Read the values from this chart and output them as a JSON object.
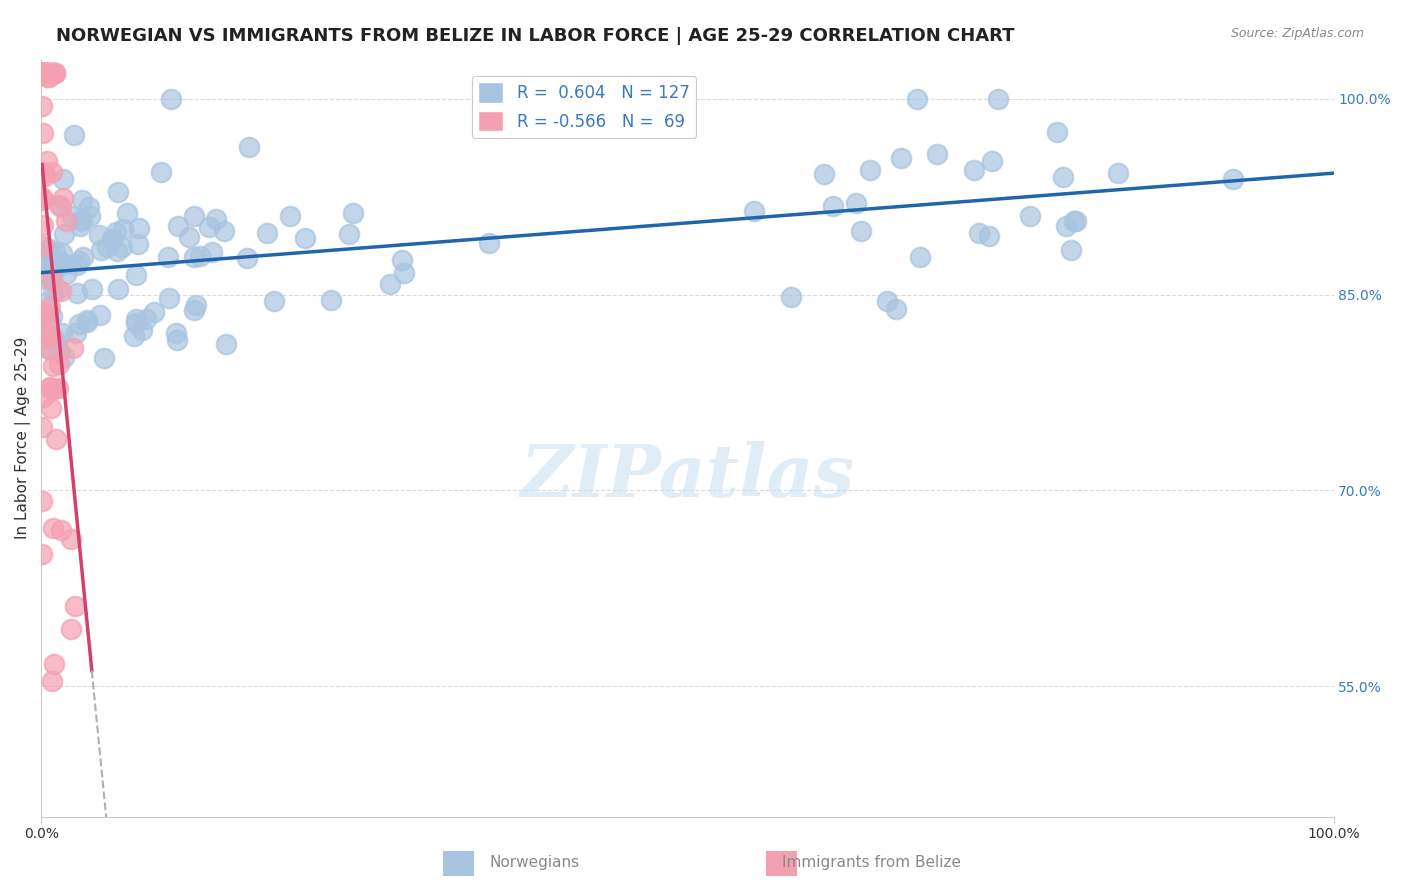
{
  "title": "NORWEGIAN VS IMMIGRANTS FROM BELIZE IN LABOR FORCE | AGE 25-29 CORRELATION CHART",
  "source": "Source: ZipAtlas.com",
  "xlabel": "",
  "ylabel": "In Labor Force | Age 25-29",
  "r_norwegian": 0.604,
  "n_norwegian": 127,
  "r_belize": -0.566,
  "n_belize": 69,
  "xlim": [
    0.0,
    1.0
  ],
  "ylim_pct": [
    0.45,
    1.03
  ],
  "yticks": [
    0.55,
    0.7,
    0.85,
    1.0
  ],
  "ytick_labels": [
    "55.0%",
    "70.0%",
    "85.0%",
    "100.0%"
  ],
  "xtick_labels": [
    "0.0%",
    "100.0%"
  ],
  "blue_color": "#a8c4e0",
  "blue_line_color": "#2166ac",
  "pink_color": "#f4a0b0",
  "pink_line_color": "#d63f6a",
  "watermark": "ZIPatlas",
  "legend_R_color": "#3a7abf",
  "title_fontsize": 13,
  "axis_label_fontsize": 11,
  "tick_fontsize": 10,
  "right_tick_color": "#3a7abf"
}
